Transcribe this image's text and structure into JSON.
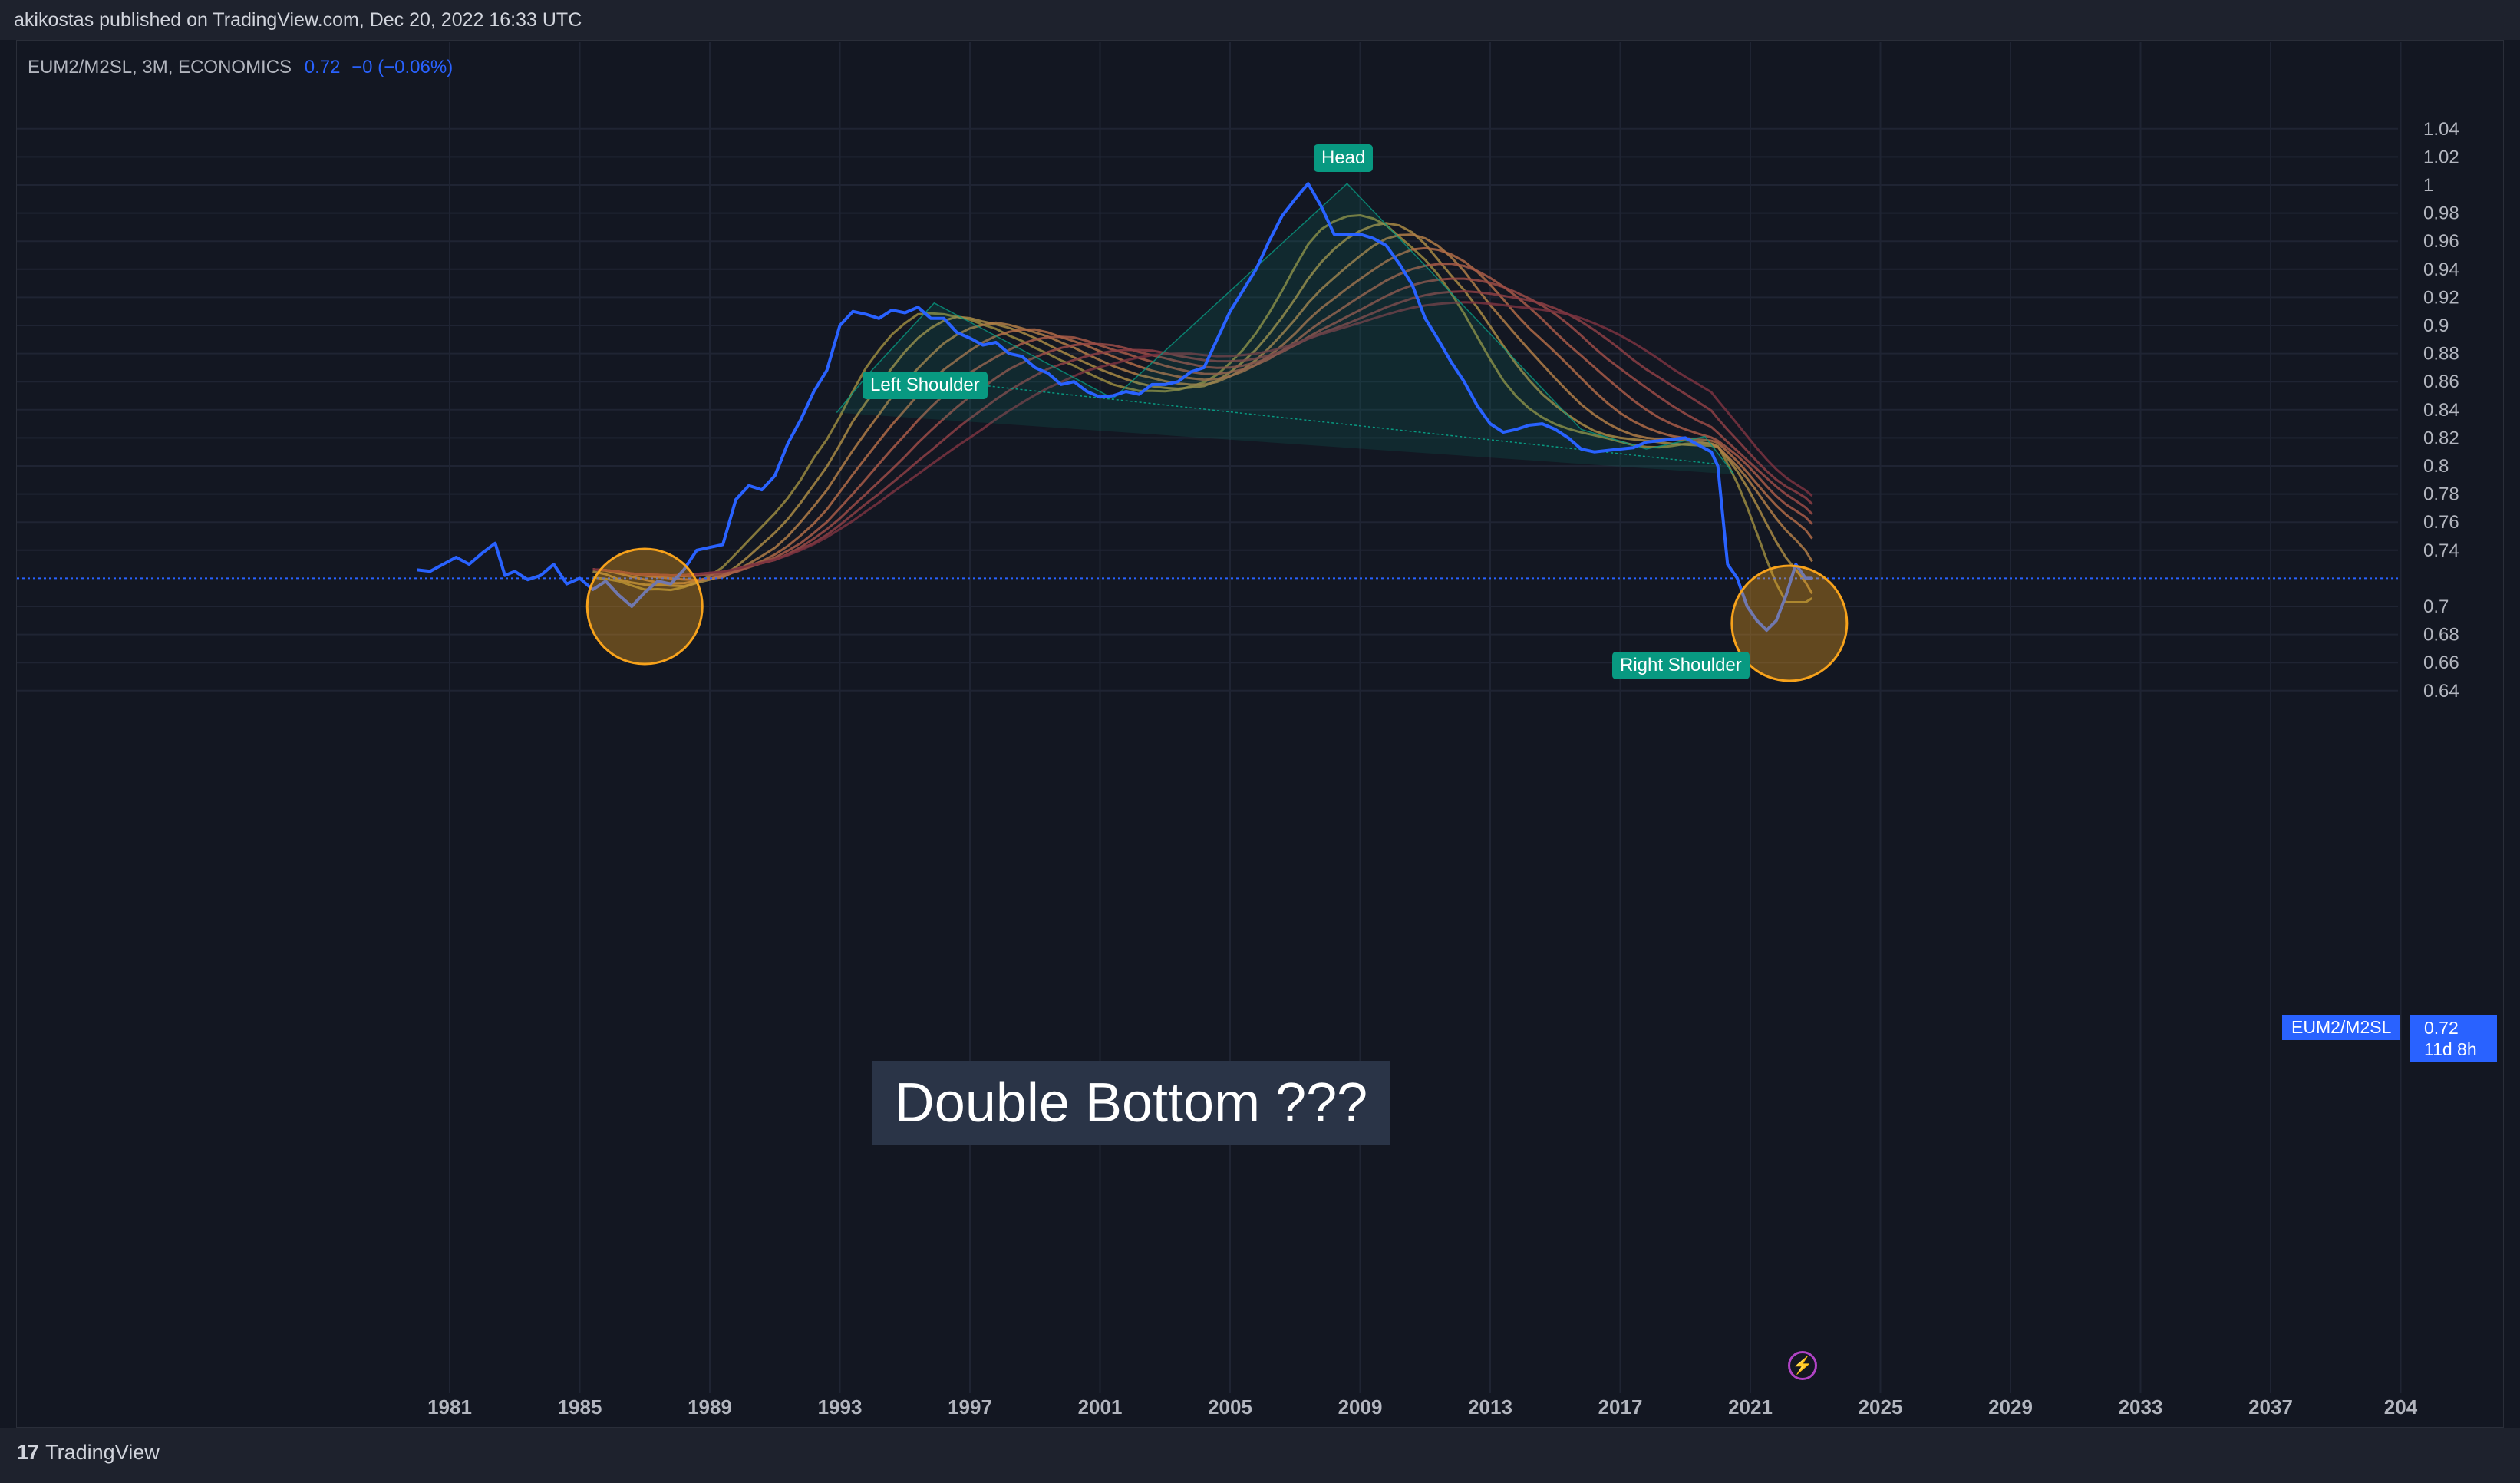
{
  "header": {
    "published": "akikostas published on TradingView.com, Dec 20, 2022 16:33 UTC"
  },
  "legend": {
    "symbol": "EUM2/M2SL, 3M, ECONOMICS",
    "value": "0.72",
    "change": "−0 (−0.06%)"
  },
  "price_scale": {
    "symbol_tag": "EUM2/M2SL",
    "last_value": "0.72",
    "countdown": "11d 8h"
  },
  "annotations": {
    "left_shoulder": "Left Shoulder",
    "head": "Head",
    "right_shoulder": "Right Shoulder",
    "big_text": "Double Bottom ???"
  },
  "footer": {
    "brand": "TradingView",
    "brand_mark": "17"
  },
  "colors": {
    "background": "#131722",
    "line": "#2962ff",
    "pattern_fill": "#089981",
    "circle": "#f7a21b"
  },
  "chart_data": {
    "type": "line",
    "series": [
      {
        "name": "EUM2/M2SL",
        "x": [
          1980.0,
          1980.4,
          1980.8,
          1981.2,
          1981.6,
          1982.0,
          1982.4,
          1982.7,
          1983.0,
          1983.4,
          1983.8,
          1984.2,
          1984.6,
          1985.0,
          1985.4,
          1985.8,
          1986.2,
          1986.6,
          1987.0,
          1987.4,
          1987.8,
          1988.2,
          1988.6,
          1989.0,
          1989.4,
          1989.8,
          1990.2,
          1990.6,
          1991.0,
          1991.4,
          1991.8,
          1992.2,
          1992.6,
          1993.0,
          1993.4,
          1993.8,
          1994.2,
          1994.6,
          1995.0,
          1995.4,
          1995.8,
          1996.2,
          1996.6,
          1997.0,
          1997.4,
          1997.8,
          1998.2,
          1998.6,
          1999.0,
          1999.4,
          1999.8,
          2000.2,
          2000.6,
          2001.0,
          2001.4,
          2001.8,
          2002.2,
          2002.6,
          2003.0,
          2003.4,
          2003.8,
          2004.2,
          2004.6,
          2005.0,
          2005.4,
          2005.8,
          2006.2,
          2006.6,
          2007.0,
          2007.4,
          2007.8,
          2008.2,
          2008.6,
          2009.0,
          2009.4,
          2009.8,
          2010.2,
          2010.6,
          2011.0,
          2011.4,
          2011.8,
          2012.2,
          2012.6,
          2013.0,
          2013.4,
          2013.8,
          2014.2,
          2014.6,
          2015.0,
          2015.4,
          2015.8,
          2016.2,
          2016.6,
          2017.0,
          2017.4,
          2017.8,
          2018.2,
          2018.6,
          2019.0,
          2019.4,
          2019.8,
          2020.0,
          2020.3,
          2020.6,
          2020.9,
          2021.2,
          2021.5,
          2021.8,
          2022.1,
          2022.4,
          2022.7,
          2022.9
        ],
        "y": [
          0.726,
          0.725,
          0.73,
          0.735,
          0.73,
          0.738,
          0.745,
          0.722,
          0.725,
          0.719,
          0.722,
          0.73,
          0.716,
          0.72,
          0.712,
          0.718,
          0.708,
          0.7,
          0.71,
          0.718,
          0.716,
          0.726,
          0.74,
          0.742,
          0.744,
          0.776,
          0.786,
          0.783,
          0.793,
          0.816,
          0.833,
          0.853,
          0.868,
          0.9,
          0.91,
          0.908,
          0.905,
          0.911,
          0.909,
          0.913,
          0.905,
          0.905,
          0.895,
          0.891,
          0.886,
          0.888,
          0.88,
          0.878,
          0.87,
          0.866,
          0.858,
          0.86,
          0.853,
          0.849,
          0.85,
          0.853,
          0.851,
          0.858,
          0.858,
          0.86,
          0.867,
          0.87,
          0.89,
          0.91,
          0.925,
          0.94,
          0.96,
          0.978,
          0.99,
          1.001,
          0.985,
          0.965,
          0.965,
          0.965,
          0.962,
          0.957,
          0.944,
          0.929,
          0.905,
          0.89,
          0.874,
          0.86,
          0.843,
          0.83,
          0.824,
          0.826,
          0.829,
          0.83,
          0.826,
          0.82,
          0.812,
          0.81,
          0.811,
          0.812,
          0.813,
          0.817,
          0.818,
          0.819,
          0.82,
          0.815,
          0.81,
          0.8,
          0.73,
          0.72,
          0.7,
          0.69,
          0.683,
          0.69,
          0.708,
          0.73,
          0.72,
          0.72
        ]
      }
    ],
    "x_ticks": [
      "1981",
      "1985",
      "1989",
      "1993",
      "1997",
      "2001",
      "2005",
      "2009",
      "2013",
      "2017",
      "2021",
      "2025",
      "2029",
      "2033",
      "2037",
      "204"
    ],
    "y_ticks": [
      "1.04",
      "1.02",
      "1",
      "0.98",
      "0.96",
      "0.94",
      "0.92",
      "0.9",
      "0.88",
      "0.86",
      "0.84",
      "0.82",
      "0.8",
      "0.78",
      "0.76",
      "0.74",
      "0.7",
      "0.68",
      "0.66",
      "0.64"
    ],
    "xlim": [
      1980,
      2041
    ],
    "ylim": [
      0.63,
      1.045
    ],
    "last_price_line": 0.72,
    "ma_ribbon_count": 8,
    "pattern": {
      "type": "head-and-shoulders",
      "points": [
        [
          1992.9,
          0.838
        ],
        [
          1993.9,
          0.866
        ],
        [
          1995.9,
          0.916
        ],
        [
          2001.4,
          0.848
        ],
        [
          2008.6,
          1.001
        ],
        [
          2015.8,
          0.826
        ],
        [
          2017.8,
          0.812
        ],
        [
          2019.6,
          0.821
        ],
        [
          2020.5,
          0.794
        ]
      ],
      "neckline": [
        [
          1993.9,
          0.866
        ],
        [
          2020.1,
          0.801
        ]
      ]
    },
    "circles": [
      {
        "x": 1987.0,
        "y": 0.7
      },
      {
        "x": 2022.2,
        "y": 0.688
      }
    ],
    "grid": true
  }
}
